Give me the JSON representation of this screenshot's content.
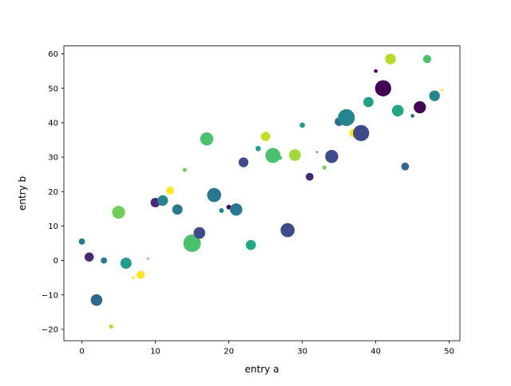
{
  "chart_data": {
    "type": "scatter",
    "title": "",
    "xlabel": "entry a",
    "ylabel": "entry b",
    "xlim": [
      -2.45,
      51.45
    ],
    "ylim": [
      -23.3,
      62.3
    ],
    "xticks": [
      0,
      10,
      20,
      30,
      40,
      50
    ],
    "yticks": [
      -20,
      -10,
      0,
      10,
      20,
      30,
      40,
      50,
      60
    ],
    "xtick_labels": [
      "0",
      "10",
      "20",
      "30",
      "40",
      "50"
    ],
    "ytick_labels": [
      "−20",
      "−10",
      "0",
      "10",
      "20",
      "30",
      "40",
      "50",
      "60"
    ],
    "grid": false,
    "legend": "none",
    "colormap": "viridis",
    "points": [
      {
        "x": 0,
        "y": 5.5,
        "size": 35,
        "color": "#2a788e"
      },
      {
        "x": 1,
        "y": 1.0,
        "size": 75,
        "color": "#482878"
      },
      {
        "x": 2,
        "y": -11.5,
        "size": 120,
        "color": "#31688e"
      },
      {
        "x": 3,
        "y": 0.0,
        "size": 35,
        "color": "#2a788e"
      },
      {
        "x": 4,
        "y": -19.2,
        "size": 15,
        "color": "#b5de2b"
      },
      {
        "x": 5,
        "y": 14.0,
        "size": 145,
        "color": "#6ece58"
      },
      {
        "x": 6,
        "y": -0.8,
        "size": 110,
        "color": "#1f9e89"
      },
      {
        "x": 7,
        "y": -5.0,
        "size": 6,
        "color": "#fde725"
      },
      {
        "x": 8,
        "y": -4.2,
        "size": 60,
        "color": "#fde725"
      },
      {
        "x": 9,
        "y": 0.5,
        "size": 4,
        "color": "#6ece58"
      },
      {
        "x": 10,
        "y": 16.8,
        "size": 80,
        "color": "#482878"
      },
      {
        "x": 11,
        "y": 17.4,
        "size": 100,
        "color": "#25858e"
      },
      {
        "x": 12,
        "y": 20.3,
        "size": 55,
        "color": "#fde725"
      },
      {
        "x": 13,
        "y": 14.8,
        "size": 95,
        "color": "#2a788e"
      },
      {
        "x": 14,
        "y": 26.3,
        "size": 15,
        "color": "#6ece58"
      },
      {
        "x": 15,
        "y": 5.0,
        "size": 270,
        "color": "#4ac16d"
      },
      {
        "x": 16,
        "y": 8.0,
        "size": 120,
        "color": "#3e4a89"
      },
      {
        "x": 17,
        "y": 35.3,
        "size": 150,
        "color": "#4ac16d"
      },
      {
        "x": 18,
        "y": 19.0,
        "size": 175,
        "color": "#2a788e"
      },
      {
        "x": 19,
        "y": 14.5,
        "size": 20,
        "color": "#25858e"
      },
      {
        "x": 20,
        "y": 15.5,
        "size": 20,
        "color": "#440154"
      },
      {
        "x": 21,
        "y": 14.8,
        "size": 135,
        "color": "#2a788e"
      },
      {
        "x": 22,
        "y": 28.5,
        "size": 85,
        "color": "#3e4a89"
      },
      {
        "x": 23,
        "y": 4.5,
        "size": 90,
        "color": "#22a884"
      },
      {
        "x": 24,
        "y": 32.5,
        "size": 25,
        "color": "#1f9e89"
      },
      {
        "x": 25,
        "y": 36.0,
        "size": 75,
        "color": "#c2df23"
      },
      {
        "x": 26,
        "y": 30.5,
        "size": 200,
        "color": "#4ac16d"
      },
      {
        "x": 27,
        "y": 29.8,
        "size": 12,
        "color": "#4ac16d"
      },
      {
        "x": 28,
        "y": 8.8,
        "size": 175,
        "color": "#3e4a89"
      },
      {
        "x": 29,
        "y": 30.6,
        "size": 120,
        "color": "#a0da39"
      },
      {
        "x": 30,
        "y": 39.3,
        "size": 25,
        "color": "#1f9e89"
      },
      {
        "x": 31,
        "y": 24.3,
        "size": 55,
        "color": "#482878"
      },
      {
        "x": 32,
        "y": 31.5,
        "size": 3,
        "color": "#31688e"
      },
      {
        "x": 33,
        "y": 27.0,
        "size": 15,
        "color": "#6ece58"
      },
      {
        "x": 34,
        "y": 30.2,
        "size": 150,
        "color": "#3e4a89"
      },
      {
        "x": 35,
        "y": 40.3,
        "size": 65,
        "color": "#31688e"
      },
      {
        "x": 36,
        "y": 41.5,
        "size": 250,
        "color": "#25858e"
      },
      {
        "x": 37,
        "y": 37.0,
        "size": 70,
        "color": "#fde725"
      },
      {
        "x": 38,
        "y": 37.0,
        "size": 230,
        "color": "#3e4a89"
      },
      {
        "x": 39,
        "y": 46.0,
        "size": 90,
        "color": "#1f9e89"
      },
      {
        "x": 40,
        "y": 55.0,
        "size": 12,
        "color": "#440154"
      },
      {
        "x": 41,
        "y": 50.0,
        "size": 230,
        "color": "#440154"
      },
      {
        "x": 42,
        "y": 58.5,
        "size": 100,
        "color": "#b5de2b"
      },
      {
        "x": 43,
        "y": 43.5,
        "size": 120,
        "color": "#22a884"
      },
      {
        "x": 44,
        "y": 27.3,
        "size": 55,
        "color": "#31688e"
      },
      {
        "x": 45,
        "y": 42.0,
        "size": 12,
        "color": "#31688e"
      },
      {
        "x": 46,
        "y": 44.5,
        "size": 130,
        "color": "#440154"
      },
      {
        "x": 47,
        "y": 58.5,
        "size": 60,
        "color": "#4ac16d"
      },
      {
        "x": 48,
        "y": 47.8,
        "size": 100,
        "color": "#25858e"
      },
      {
        "x": 49,
        "y": 49.5,
        "size": 6,
        "color": "#fde725"
      }
    ]
  }
}
